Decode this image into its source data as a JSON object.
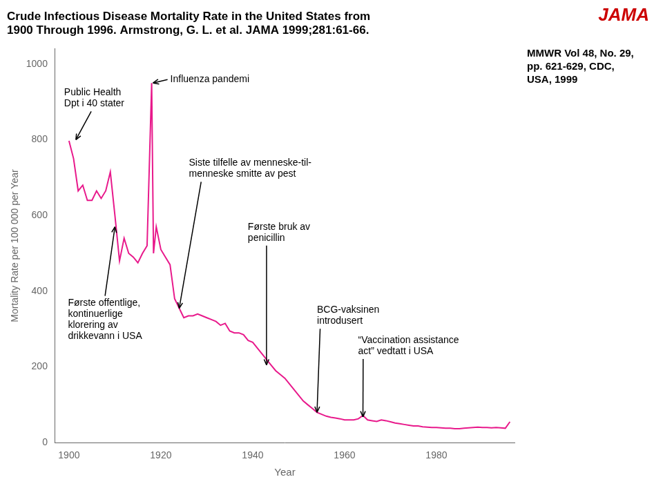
{
  "chart_data": {
    "type": "line",
    "title": [
      "Crude Infectious Disease Mortality Rate in the United States from",
      "1900 Through 1996. Armstrong, G. L. et al. JAMA 1999;281:61-66."
    ],
    "xlabel": "Year",
    "ylabel": "Mortality Rate per 100 000 per Year",
    "color": "#E8198B",
    "grid": false,
    "xlim": [
      1897,
      1997
    ],
    "ylim": [
      0,
      1040
    ],
    "xticks": [
      1900,
      1920,
      1940,
      1960,
      1980
    ],
    "yticks": [
      0,
      200,
      400,
      600,
      800,
      1000
    ],
    "x": [
      1900,
      1901,
      1902,
      1903,
      1904,
      1905,
      1906,
      1907,
      1908,
      1909,
      1910,
      1911,
      1912,
      1913,
      1914,
      1915,
      1916,
      1917,
      1918,
      1918.4,
      1919,
      1920,
      1921,
      1922,
      1923,
      1924,
      1925,
      1926,
      1927,
      1928,
      1929,
      1930,
      1931,
      1932,
      1933,
      1934,
      1935,
      1936,
      1937,
      1938,
      1939,
      1940,
      1941,
      1942,
      1943,
      1944,
      1945,
      1946,
      1947,
      1948,
      1949,
      1950,
      1951,
      1952,
      1953,
      1954,
      1955,
      1956,
      1957,
      1958,
      1959,
      1960,
      1961,
      1962,
      1963,
      1964,
      1965,
      1966,
      1967,
      1968,
      1969,
      1970,
      1971,
      1972,
      1973,
      1974,
      1975,
      1976,
      1977,
      1978,
      1979,
      1980,
      1981,
      1982,
      1983,
      1984,
      1985,
      1986,
      1987,
      1988,
      1989,
      1990,
      1991,
      1992,
      1993,
      1994,
      1995,
      1996
    ],
    "values": [
      797,
      750,
      665,
      680,
      640,
      640,
      665,
      645,
      665,
      715,
      600,
      480,
      540,
      500,
      490,
      475,
      500,
      520,
      950,
      500,
      570,
      510,
      490,
      470,
      380,
      355,
      330,
      335,
      335,
      340,
      335,
      330,
      325,
      320,
      310,
      315,
      295,
      290,
      290,
      285,
      270,
      265,
      250,
      235,
      220,
      205,
      190,
      180,
      170,
      155,
      140,
      125,
      110,
      100,
      90,
      80,
      75,
      70,
      67,
      65,
      63,
      60,
      60,
      60,
      63,
      72,
      60,
      58,
      56,
      60,
      58,
      55,
      52,
      50,
      48,
      46,
      44,
      44,
      42,
      41,
      40,
      40,
      39,
      38,
      38,
      37,
      37,
      38,
      39,
      40,
      41,
      40,
      40,
      39,
      40,
      39,
      38,
      55
    ],
    "annotations": [
      {
        "text": "JAMA",
        "color": "#CC0000"
      },
      {
        "text": "MMWR Vol 48, No. 29,\npp. 621-629, CDC,\nUSA, 1999"
      },
      {
        "text": "Public Health\nDpt i 40 stater",
        "x": 1901.5,
        "y": 800
      },
      {
        "text": "Influenza pandemi",
        "x": 1918.3,
        "y": 950
      },
      {
        "text": "Første offentlige,\nkontinuerlige\nklorering av\ndrikkevann i USA",
        "x": 1910,
        "y": 570
      },
      {
        "text": "Siste tilfelle av menneske-til-\nmenneske smitte av pest",
        "x": 1924,
        "y": 355
      },
      {
        "text": "Første bruk av\npenicillin",
        "x": 1943,
        "y": 205
      },
      {
        "text": "BCG-vaksinen\nintrodusert",
        "x": 1954,
        "y": 80
      },
      {
        "text": "“Vaccination assistance\nact” vedtatt i USA",
        "x": 1964,
        "y": 68
      }
    ]
  }
}
